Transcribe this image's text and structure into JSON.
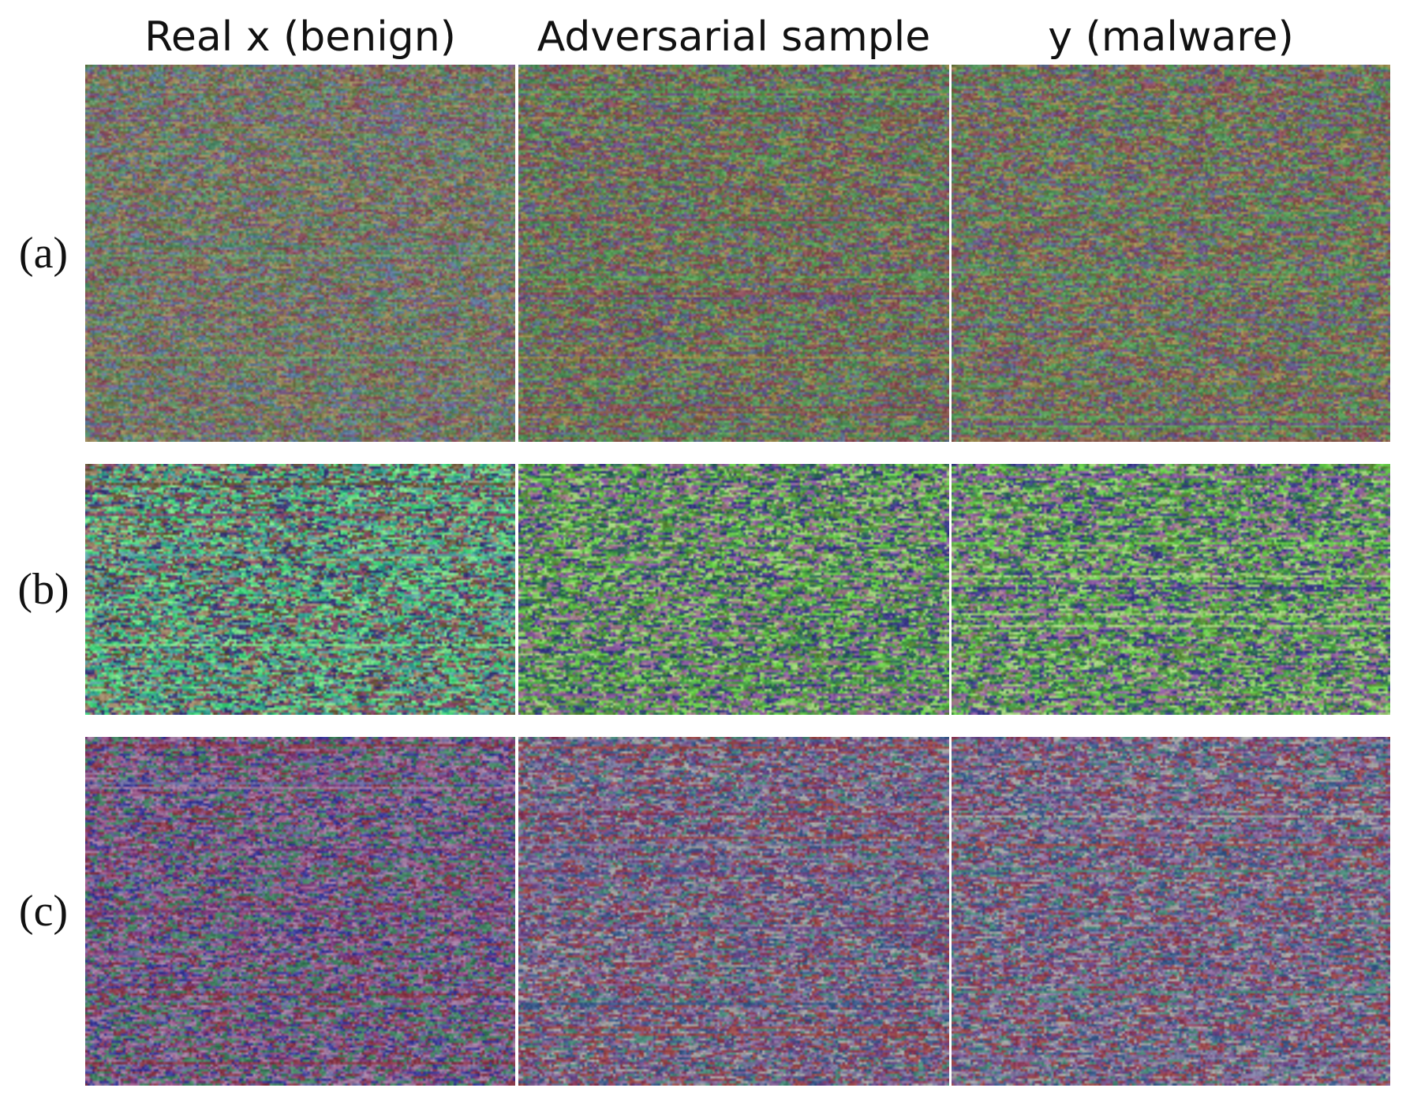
{
  "columns": [
    {
      "label": "Real x (benign)"
    },
    {
      "label": "Adversarial sample"
    },
    {
      "label": "y (malware)"
    }
  ],
  "rows": [
    {
      "label": "(a)",
      "panels": [
        {
          "palette": [
            "#6d7a4a",
            "#8a6d55",
            "#4f8a6a",
            "#7a5c8a",
            "#5c7a9a",
            "#9a8a5c",
            "#6a9a6a",
            "#8a4f5c"
          ],
          "seed": 11
        },
        {
          "palette": [
            "#6a7a45",
            "#865a4c",
            "#4c8a58",
            "#6a4f86",
            "#5a6e8a",
            "#9a8a4f",
            "#5aa05a",
            "#8a4c5a"
          ],
          "seed": 23
        },
        {
          "palette": [
            "#6c7c46",
            "#8a5c4e",
            "#4e8c5a",
            "#6c5088",
            "#5c708c",
            "#9c8c50",
            "#5ca25c",
            "#8c4e5c"
          ],
          "seed": 37
        }
      ]
    },
    {
      "label": "(b)",
      "panels": [
        {
          "palette": [
            "#3fd07a",
            "#6a5a3a",
            "#2f9a8a",
            "#8a4a6a",
            "#5aa0a0",
            "#3a3a7a",
            "#7ae08a",
            "#a08a6a"
          ],
          "seed": 41
        },
        {
          "palette": [
            "#6ad04a",
            "#3a3a8a",
            "#4aa04a",
            "#8a5aa0",
            "#a0d07a",
            "#2f6a5a",
            "#5a8a3a",
            "#a07a8a"
          ],
          "seed": 53
        },
        {
          "palette": [
            "#6ad04c",
            "#3c3c8c",
            "#4ca24c",
            "#8c5ca2",
            "#a2d27c",
            "#316c5c",
            "#5c8c3c",
            "#a27c8c"
          ],
          "seed": 67
        }
      ]
    },
    {
      "label": "(c)",
      "panels": [
        {
          "palette": [
            "#7a3a7a",
            "#3a3a9a",
            "#8a3a4a",
            "#4a8a6a",
            "#6a6aa0",
            "#a07aa0",
            "#3a7a5a",
            "#9a5a8a"
          ],
          "seed": 71
        },
        {
          "palette": [
            "#8a3a5a",
            "#6a4a8a",
            "#4a8a7a",
            "#9a4a4a",
            "#7a7aa0",
            "#a0a0a0",
            "#3a5a8a",
            "#8a6a9a"
          ],
          "seed": 83
        },
        {
          "palette": [
            "#8c3c5c",
            "#6c4c8c",
            "#4c8c7c",
            "#9c4c4c",
            "#7c7ca2",
            "#a2a2a2",
            "#3c5c8c",
            "#8c6c9c"
          ],
          "seed": 97
        }
      ]
    }
  ]
}
